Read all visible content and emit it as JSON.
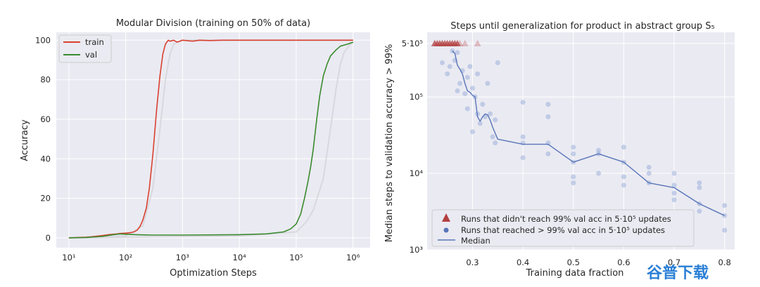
{
  "colors": {
    "panel_bg": "#eaeaf2",
    "grid": "#ffffff",
    "train": "#d9402f",
    "val": "#3a8a2e",
    "ghost": "#d8d8de",
    "not_reached": "#b34040",
    "reached": "#6f8fcf",
    "median": "#5875b8",
    "watermark": "#2a7fd6"
  },
  "watermark": "谷普下载",
  "chart_data": [
    {
      "type": "line",
      "title": "Modular Division (training on 50% of data)",
      "xlabel": "Optimization Steps",
      "ylabel": "Accuracy",
      "xscale": "log",
      "xlim": [
        6,
        2000000
      ],
      "ylim": [
        -5,
        104
      ],
      "xticks": [
        {
          "v": 10,
          "label": "10¹"
        },
        {
          "v": 100,
          "label": "10²"
        },
        {
          "v": 1000,
          "label": "10³"
        },
        {
          "v": 10000,
          "label": "10⁴"
        },
        {
          "v": 100000,
          "label": "10⁵"
        },
        {
          "v": 1000000,
          "label": "10⁶"
        }
      ],
      "yticks": [
        0,
        20,
        40,
        60,
        80,
        100
      ],
      "legend": "top-left",
      "series": [
        {
          "name": "train",
          "color_key": "train",
          "x": [
            10,
            20,
            30,
            40,
            50,
            60,
            70,
            80,
            100,
            120,
            140,
            160,
            180,
            200,
            230,
            260,
            300,
            350,
            400,
            450,
            500,
            560,
            600,
            700,
            800,
            1000,
            1500,
            2000,
            3000,
            5000,
            10000,
            30000,
            100000,
            300000,
            1000000
          ],
          "y": [
            0,
            0.3,
            0.8,
            1.2,
            1.6,
            1.8,
            2,
            2.2,
            2.4,
            2.6,
            3,
            4,
            6,
            9,
            15,
            25,
            42,
            65,
            82,
            93,
            98,
            100,
            99.5,
            100,
            99,
            100,
            99.5,
            100,
            99.8,
            100,
            100,
            100,
            100,
            100,
            100
          ]
        },
        {
          "name": "val",
          "color_key": "val",
          "x": [
            10,
            20,
            30,
            40,
            50,
            60,
            80,
            100,
            150,
            200,
            300,
            1000,
            10000,
            30000,
            60000,
            80000,
            100000,
            120000,
            140000,
            160000,
            180000,
            200000,
            230000,
            260000,
            300000,
            350000,
            400000,
            500000,
            600000,
            800000,
            1000000
          ],
          "y": [
            0,
            0.2,
            0.5,
            0.8,
            1.2,
            1.6,
            2,
            1.8,
            1.6,
            1.5,
            1.4,
            1.4,
            1.6,
            2,
            3,
            4.5,
            7,
            12,
            20,
            28,
            36,
            45,
            60,
            72,
            82,
            88,
            92,
            95,
            97,
            98,
            99
          ]
        }
      ],
      "ghost_series": [
        {
          "x": [
            10,
            100,
            200,
            300,
            400,
            500,
            600,
            700,
            800,
            1000,
            3000,
            1000000
          ],
          "y": [
            0,
            1,
            6,
            25,
            55,
            80,
            93,
            98,
            99,
            100,
            100,
            100
          ]
        },
        {
          "x": [
            10,
            10000,
            100000,
            150000,
            200000,
            300000,
            400000,
            500000,
            600000,
            700000,
            900000,
            1000000
          ],
          "y": [
            0,
            1,
            3,
            8,
            14,
            30,
            55,
            75,
            88,
            94,
            98,
            99
          ]
        }
      ]
    },
    {
      "type": "scatter",
      "title": "Steps until generalization for product in abstract group S₅",
      "xlabel": "Training data fraction",
      "ylabel": "Median steps to validation accuracy > 99%",
      "yscale": "log",
      "xlim": [
        0.21,
        0.82
      ],
      "ylim": [
        1000,
        700000
      ],
      "xticks": [
        0.3,
        0.4,
        0.5,
        0.6,
        0.7,
        0.8
      ],
      "yticks": [
        {
          "v": 1000,
          "label": "10³"
        },
        {
          "v": 10000,
          "label": "10⁴"
        },
        {
          "v": 100000,
          "label": "10⁵"
        },
        {
          "v": 500000,
          "label": "5·10⁵"
        }
      ],
      "legend": "lower-left",
      "legend_labels": [
        "Runs that didn't reach 99% val acc in 5·10⁵ updates",
        "Runs that reached > 99% val acc in 5·10⁵ updates",
        "Median"
      ],
      "not_reached": [
        {
          "x": 0.225,
          "y": 500000
        },
        {
          "x": 0.23,
          "y": 500000
        },
        {
          "x": 0.235,
          "y": 500000
        },
        {
          "x": 0.24,
          "y": 500000
        },
        {
          "x": 0.245,
          "y": 500000
        },
        {
          "x": 0.25,
          "y": 500000
        },
        {
          "x": 0.255,
          "y": 500000
        },
        {
          "x": 0.26,
          "y": 500000
        },
        {
          "x": 0.265,
          "y": 500000
        },
        {
          "x": 0.27,
          "y": 500000
        },
        {
          "x": 0.275,
          "y": 500000
        },
        {
          "x": 0.285,
          "y": 500000
        },
        {
          "x": 0.31,
          "y": 500000
        }
      ],
      "reached": [
        {
          "x": 0.24,
          "y": 280000
        },
        {
          "x": 0.25,
          "y": 200000
        },
        {
          "x": 0.255,
          "y": 250000
        },
        {
          "x": 0.26,
          "y": 400000
        },
        {
          "x": 0.265,
          "y": 300000
        },
        {
          "x": 0.27,
          "y": 380000
        },
        {
          "x": 0.27,
          "y": 120000
        },
        {
          "x": 0.275,
          "y": 150000
        },
        {
          "x": 0.28,
          "y": 220000
        },
        {
          "x": 0.285,
          "y": 110000
        },
        {
          "x": 0.29,
          "y": 70000
        },
        {
          "x": 0.29,
          "y": 180000
        },
        {
          "x": 0.295,
          "y": 250000
        },
        {
          "x": 0.3,
          "y": 130000
        },
        {
          "x": 0.3,
          "y": 35000
        },
        {
          "x": 0.305,
          "y": 100000
        },
        {
          "x": 0.31,
          "y": 60000
        },
        {
          "x": 0.31,
          "y": 200000
        },
        {
          "x": 0.315,
          "y": 45000
        },
        {
          "x": 0.32,
          "y": 80000
        },
        {
          "x": 0.325,
          "y": 55000
        },
        {
          "x": 0.33,
          "y": 150000
        },
        {
          "x": 0.335,
          "y": 60000
        },
        {
          "x": 0.34,
          "y": 30000
        },
        {
          "x": 0.345,
          "y": 25000
        },
        {
          "x": 0.345,
          "y": 50000
        },
        {
          "x": 0.35,
          "y": 280000
        },
        {
          "x": 0.4,
          "y": 25000
        },
        {
          "x": 0.4,
          "y": 85000
        },
        {
          "x": 0.4,
          "y": 16000
        },
        {
          "x": 0.4,
          "y": 30000
        },
        {
          "x": 0.45,
          "y": 25000
        },
        {
          "x": 0.45,
          "y": 55000
        },
        {
          "x": 0.45,
          "y": 18000
        },
        {
          "x": 0.45,
          "y": 80000
        },
        {
          "x": 0.5,
          "y": 14000
        },
        {
          "x": 0.5,
          "y": 18000
        },
        {
          "x": 0.5,
          "y": 9000
        },
        {
          "x": 0.5,
          "y": 22000
        },
        {
          "x": 0.5,
          "y": 7500
        },
        {
          "x": 0.55,
          "y": 20000
        },
        {
          "x": 0.55,
          "y": 18000
        },
        {
          "x": 0.55,
          "y": 10000
        },
        {
          "x": 0.6,
          "y": 14000
        },
        {
          "x": 0.6,
          "y": 22000
        },
        {
          "x": 0.6,
          "y": 9000
        },
        {
          "x": 0.6,
          "y": 7000
        },
        {
          "x": 0.65,
          "y": 7500
        },
        {
          "x": 0.65,
          "y": 12000
        },
        {
          "x": 0.65,
          "y": 10000
        },
        {
          "x": 0.7,
          "y": 7000
        },
        {
          "x": 0.7,
          "y": 5500
        },
        {
          "x": 0.7,
          "y": 4500
        },
        {
          "x": 0.7,
          "y": 10000
        },
        {
          "x": 0.75,
          "y": 4000
        },
        {
          "x": 0.75,
          "y": 3200
        },
        {
          "x": 0.75,
          "y": 6500
        },
        {
          "x": 0.75,
          "y": 7500
        },
        {
          "x": 0.8,
          "y": 2800
        },
        {
          "x": 0.8,
          "y": 1800
        },
        {
          "x": 0.8,
          "y": 3800
        }
      ],
      "median": {
        "x": [
          0.26,
          0.265,
          0.27,
          0.275,
          0.28,
          0.285,
          0.29,
          0.295,
          0.3,
          0.305,
          0.31,
          0.315,
          0.32,
          0.325,
          0.33,
          0.335,
          0.34,
          0.35,
          0.4,
          0.45,
          0.5,
          0.55,
          0.6,
          0.65,
          0.7,
          0.75,
          0.8
        ],
        "y": [
          400000,
          370000,
          260000,
          230000,
          200000,
          150000,
          120000,
          115000,
          105000,
          100000,
          55000,
          48000,
          55000,
          60000,
          58000,
          50000,
          40000,
          28000,
          24000,
          24000,
          14000,
          18000,
          14000,
          7500,
          6500,
          4000,
          2800
        ]
      }
    }
  ]
}
